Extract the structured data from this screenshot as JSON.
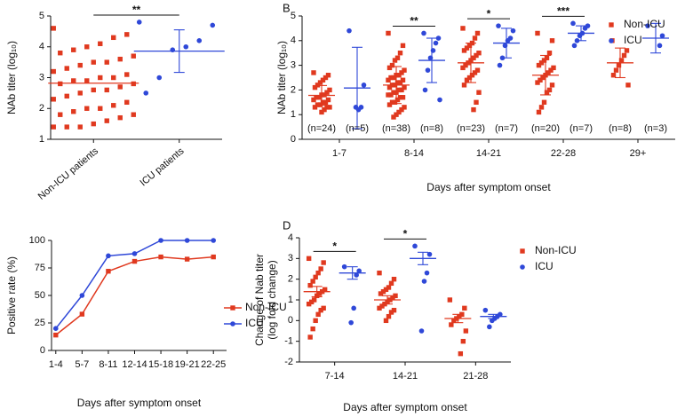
{
  "chart_data": [
    {
      "type": "dotplot",
      "ylabel": [
        "NAb titer (log₁₀)"
      ],
      "categories": [
        "Non-ICU patients",
        "ICU patients"
      ],
      "ylim": [
        1,
        5
      ],
      "yticks": [
        1,
        2,
        3,
        4,
        5
      ],
      "series": [
        {
          "color": "#e0391f",
          "marker": "square",
          "values": [
            [
              4.6,
              4.4,
              4.3,
              4.1,
              4.0,
              3.9,
              3.8,
              3.7,
              3.6,
              3.5,
              3.5,
              3.4,
              3.3,
              3.2,
              3.1,
              3.0,
              3.0,
              2.9,
              2.9,
              2.8,
              2.8,
              2.7,
              2.6,
              2.6,
              2.5,
              2.4,
              2.3,
              2.2,
              2.1,
              2.0,
              2.0,
              1.9,
              1.8,
              1.8,
              1.7,
              1.6,
              1.5,
              1.4,
              1.4,
              1.4
            ],
            null
          ],
          "means": [
            2.82,
            null
          ],
          "errors": [
            null,
            null
          ]
        },
        {
          "color": "#2f48d8",
          "marker": "circle",
          "values": [
            null,
            [
              4.8,
              4.7,
              4.2,
              4.0,
              3.9,
              3.0,
              2.5
            ]
          ],
          "means": [
            null,
            3.86
          ],
          "errors": [
            null,
            0.69
          ]
        }
      ],
      "annotations": [
        {
          "label": "**",
          "from": "Non-ICU patients",
          "to": "ICU patients"
        }
      ]
    },
    {
      "type": "dotplot",
      "label": "B",
      "ylabel": [
        "NAb titer (log₁₀)"
      ],
      "xlabel": "Days after symptom onset",
      "categories": [
        "1-7",
        "8-14",
        "14-21",
        "22-28",
        "29+"
      ],
      "ylim": [
        0,
        5
      ],
      "yticks": [
        0,
        1,
        2,
        3,
        4,
        5
      ],
      "legend": "top-right",
      "series": [
        {
          "name": "Non-ICU",
          "color": "#e0391f",
          "marker": "square",
          "values": [
            [
              2.7,
              2.6,
              2.5,
              2.4,
              2.3,
              2.2,
              2.1,
              2.0,
              1.9,
              1.8,
              1.8,
              1.7,
              1.7,
              1.6,
              1.6,
              1.5,
              1.5,
              1.4,
              1.4,
              1.3,
              1.3,
              1.3,
              1.2,
              1.1
            ],
            [
              4.3,
              3.8,
              3.5,
              3.3,
              3.2,
              3.0,
              2.9,
              2.8,
              2.7,
              2.6,
              2.6,
              2.5,
              2.5,
              2.4,
              2.4,
              2.3,
              2.3,
              2.2,
              2.2,
              2.1,
              2.1,
              2.0,
              2.0,
              1.9,
              1.9,
              1.8,
              1.8,
              1.7,
              1.7,
              1.6,
              1.5,
              1.5,
              1.4,
              1.3,
              1.2,
              1.1,
              1.0,
              0.9
            ],
            [
              4.5,
              4.3,
              4.1,
              3.9,
              3.8,
              3.7,
              3.6,
              3.5,
              3.4,
              3.3,
              3.2,
              3.1,
              3.0,
              2.9,
              2.8,
              2.7,
              2.6,
              2.5,
              2.4,
              2.2,
              1.9,
              1.5,
              1.2
            ],
            [
              4.3,
              4.0,
              3.5,
              3.3,
              3.2,
              3.1,
              3.0,
              2.9,
              2.8,
              2.7,
              2.6,
              2.5,
              2.4,
              2.3,
              2.2,
              2.0,
              1.9,
              1.5,
              1.3,
              1.1
            ],
            [
              4.0,
              3.6,
              3.4,
              3.2,
              3.0,
              2.8,
              2.6,
              2.2
            ]
          ],
          "means": [
            1.78,
            2.2,
            3.1,
            2.6,
            3.1
          ],
          "errors": [
            0.4,
            0.75,
            0.8,
            0.8,
            0.6
          ],
          "n_labels": [
            "(n=24)",
            "(n=38)",
            "(n=23)",
            "(n=20)",
            "(n=8)"
          ]
        },
        {
          "name": "ICU",
          "color": "#2f48d8",
          "marker": "circle",
          "values": [
            [
              4.4,
              2.2,
              1.3,
              1.2,
              1.3
            ],
            [
              4.3,
              4.1,
              3.9,
              3.6,
              3.3,
              2.8,
              2.0,
              1.6
            ],
            [
              4.6,
              4.4,
              4.1,
              4.0,
              3.8,
              3.3,
              3.0
            ],
            [
              4.7,
              4.6,
              4.5,
              4.3,
              4.2,
              4.0,
              3.8
            ],
            [
              4.6,
              4.2,
              3.8
            ]
          ],
          "means": [
            2.08,
            3.2,
            3.9,
            4.3,
            4.1
          ],
          "errors": [
            1.65,
            0.9,
            0.6,
            0.3,
            0.6
          ],
          "n_labels": [
            "(n=5)",
            "(n=8)",
            "(n=7)",
            "(n=7)",
            "(n=3)"
          ]
        }
      ],
      "annotations": [
        {
          "label": "**",
          "from": "8-14",
          "to": "8-14"
        },
        {
          "label": "*",
          "from": "14-21",
          "to": "14-21"
        },
        {
          "label": "***",
          "from": "22-28",
          "to": "22-28"
        }
      ]
    },
    {
      "type": "line",
      "ylabel": [
        "Positive rate (%)"
      ],
      "xlabel": "Days after symptom onset",
      "categories": [
        "1-4",
        "5-7",
        "8-11",
        "12-14",
        "15-18",
        "19-21",
        "22-25"
      ],
      "ylim": [
        0,
        100
      ],
      "yticks": [
        0,
        25,
        50,
        75,
        100
      ],
      "legend": "right",
      "series": [
        {
          "name": "Non-ICU",
          "color": "#e0391f",
          "marker": "square",
          "values": [
            14,
            33,
            72,
            81,
            85,
            83,
            85
          ]
        },
        {
          "name": "ICU",
          "color": "#2f48d8",
          "marker": "circle",
          "values": [
            20,
            50,
            86,
            88,
            100,
            100,
            100
          ]
        }
      ]
    },
    {
      "type": "dotplot",
      "label": "D",
      "ylabel": [
        "Change of Nab titer",
        "(log fold change)"
      ],
      "xlabel": "Days after symptom onset",
      "categories": [
        "7-14",
        "14-21",
        "21-28"
      ],
      "ylim": [
        -2,
        4
      ],
      "yticks": [
        -2,
        -1,
        0,
        1,
        2,
        3,
        4
      ],
      "legend": "top-right",
      "series": [
        {
          "name": "Non-ICU",
          "color": "#e0391f",
          "marker": "square",
          "values": [
            [
              3.0,
              2.8,
              2.5,
              2.3,
              2.1,
              1.9,
              1.7,
              1.5,
              1.4,
              1.3,
              1.2,
              1.0,
              0.9,
              0.8,
              0.6,
              0.5,
              0.3,
              0.0,
              -0.4,
              -0.8
            ],
            [
              2.3,
              2.0,
              1.8,
              1.6,
              1.5,
              1.4,
              1.3,
              1.2,
              1.1,
              1.0,
              0.9,
              0.8,
              0.7,
              0.6,
              0.5,
              0.4,
              0.2,
              0.0
            ],
            [
              1.0,
              0.6,
              0.3,
              0.2,
              0.1,
              0.0,
              -0.2,
              -0.5,
              -1.0,
              -1.6
            ]
          ],
          "means": [
            1.4,
            1.0,
            0.1
          ],
          "errors": [
            0.25,
            0.2,
            0.2
          ]
        },
        {
          "name": "ICU",
          "color": "#2f48d8",
          "marker": "circle",
          "values": [
            [
              2.6,
              2.4,
              2.2,
              0.6,
              -0.1
            ],
            [
              3.6,
              3.2,
              2.3,
              1.9,
              -0.5
            ],
            [
              0.5,
              0.3,
              0.2,
              0.1,
              0.0,
              -0.3
            ]
          ],
          "means": [
            2.3,
            3.0,
            0.2
          ],
          "errors": [
            0.3,
            0.3,
            0.1
          ]
        }
      ],
      "annotations": [
        {
          "label": "*",
          "from": "7-14",
          "to": "7-14"
        },
        {
          "label": "*",
          "from": "14-21",
          "to": "14-21"
        }
      ]
    }
  ]
}
